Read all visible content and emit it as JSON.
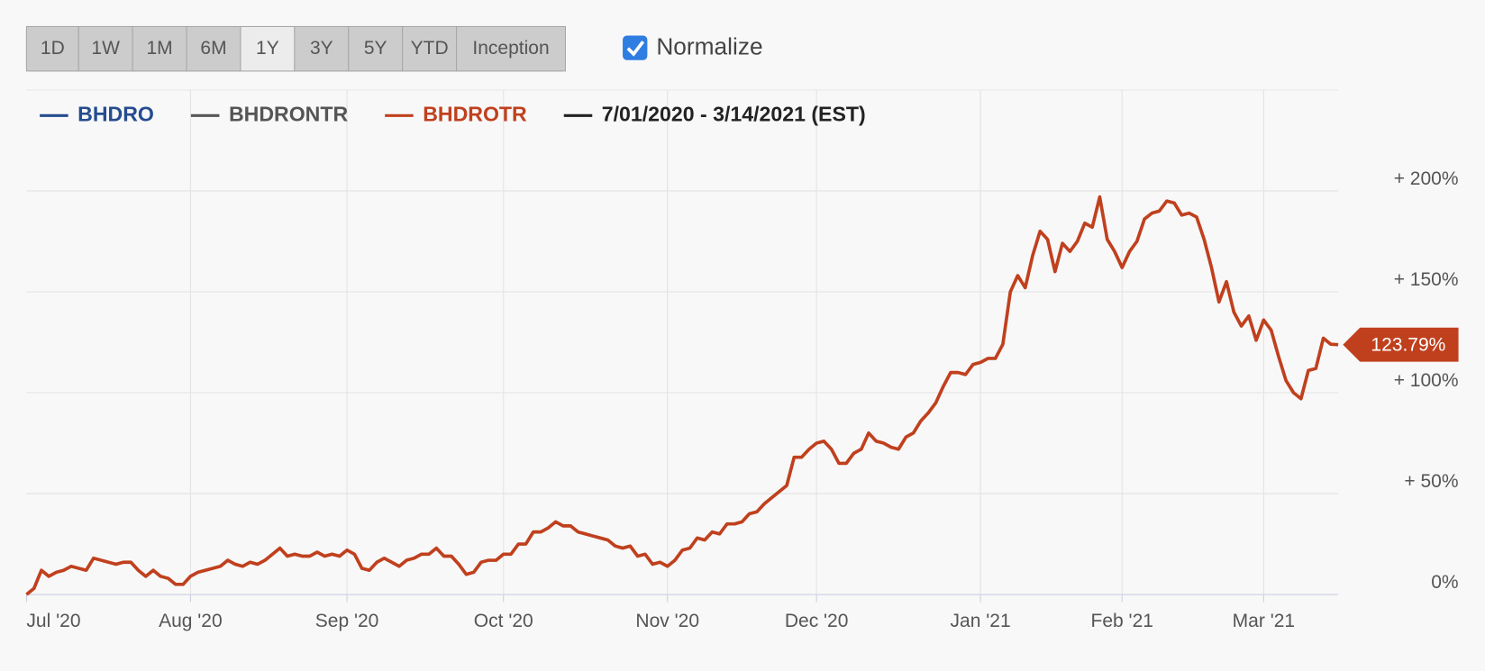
{
  "controls": {
    "buttons": [
      "1D",
      "1W",
      "1M",
      "6M",
      "1Y",
      "3Y",
      "5Y",
      "YTD",
      "Inception"
    ],
    "selected": 4,
    "checkbox": {
      "label": "Normalize",
      "checked": true
    }
  },
  "chart_data": {
    "type": "line",
    "legend_only": [
      {
        "name": "BHDRO",
        "color": "#244c8f"
      },
      {
        "name": "BHDRONTR",
        "color": "#555555"
      }
    ],
    "range_label": {
      "text": "7/01/2020 - 3/14/2021 (EST)",
      "color": "#222222"
    },
    "categories": [
      "Jul '20",
      null,
      null,
      null,
      null,
      null,
      null,
      null,
      null,
      null,
      null,
      null,
      null,
      null,
      null,
      null,
      null,
      null,
      null,
      null,
      null,
      null,
      "Aug '20",
      null,
      null,
      null,
      null,
      null,
      null,
      null,
      null,
      null,
      null,
      null,
      null,
      null,
      null,
      null,
      null,
      null,
      null,
      null,
      null,
      "Sep '20",
      null,
      null,
      null,
      null,
      null,
      null,
      null,
      null,
      null,
      null,
      null,
      null,
      null,
      null,
      null,
      null,
      null,
      null,
      null,
      null,
      "Oct '20",
      null,
      null,
      null,
      null,
      null,
      null,
      null,
      null,
      null,
      null,
      null,
      null,
      null,
      null,
      null,
      null,
      null,
      null,
      null,
      null,
      null,
      "Nov '20",
      null,
      null,
      null,
      null,
      null,
      null,
      null,
      null,
      null,
      null,
      null,
      null,
      null,
      null,
      null,
      null,
      null,
      null,
      null,
      "Dec '20",
      null,
      null,
      null,
      null,
      null,
      null,
      null,
      null,
      null,
      null,
      null,
      null,
      null,
      null,
      null,
      null,
      null,
      null,
      null,
      null,
      null,
      "Jan '21",
      null,
      null,
      null,
      null,
      null,
      null,
      null,
      null,
      null,
      null,
      null,
      null,
      null,
      null,
      null,
      null,
      null,
      null,
      "Feb '21",
      null,
      null,
      null,
      null,
      null,
      null,
      null,
      null,
      null,
      null,
      null,
      null,
      null,
      null,
      null,
      null,
      null,
      null,
      "Mar '21",
      null,
      null,
      null,
      null,
      null,
      null,
      null,
      null,
      null,
      null
    ],
    "series": [
      {
        "name": "BHDROTR",
        "color": "#c0401e",
        "last_label": "123.79%",
        "values": [
          0,
          3,
          12,
          9,
          11,
          12,
          14,
          13,
          12,
          18,
          17,
          16,
          15,
          16,
          16,
          12,
          9,
          12,
          9,
          8,
          5,
          5,
          9,
          11,
          12,
          13,
          14,
          17,
          15,
          14,
          16,
          15,
          17,
          20,
          23,
          19,
          20,
          19,
          19,
          21,
          19,
          20,
          19,
          22,
          20,
          13,
          12,
          16,
          18,
          16,
          14,
          17,
          18,
          20,
          20,
          23,
          19,
          19,
          15,
          10,
          11,
          16,
          17,
          17,
          20,
          20,
          25,
          25,
          31,
          31,
          33,
          36,
          34,
          34,
          31,
          30,
          29,
          28,
          27,
          24,
          23,
          24,
          19,
          20,
          15,
          16,
          14,
          17,
          22,
          23,
          28,
          27,
          31,
          30,
          35,
          35,
          36,
          40,
          41,
          45,
          48,
          51,
          54,
          68,
          68,
          72,
          75,
          76,
          72,
          65,
          65,
          70,
          72,
          80,
          76,
          75,
          73,
          72,
          78,
          80,
          86,
          90,
          95,
          103,
          110,
          110,
          109,
          114,
          115,
          117,
          117,
          124,
          150,
          158,
          152,
          168,
          180,
          176,
          160,
          174,
          170,
          175,
          184,
          182,
          197,
          176,
          170,
          162,
          170,
          175,
          186,
          189,
          190,
          195,
          194,
          188,
          189,
          187,
          176,
          162,
          145,
          155,
          140,
          133,
          138,
          126,
          136,
          131,
          118,
          106,
          100,
          97,
          111,
          112,
          127,
          124,
          123.79
        ]
      }
    ],
    "ylim": [
      0,
      250
    ],
    "yticks": [
      {
        "value": 0,
        "label": "0%"
      },
      {
        "value": 50,
        "label": "+ 50%"
      },
      {
        "value": 100,
        "label": "+ 100%"
      },
      {
        "value": 150,
        "label": "+ 150%"
      },
      {
        "value": 200,
        "label": "+ 200%"
      }
    ],
    "grid": true
  }
}
